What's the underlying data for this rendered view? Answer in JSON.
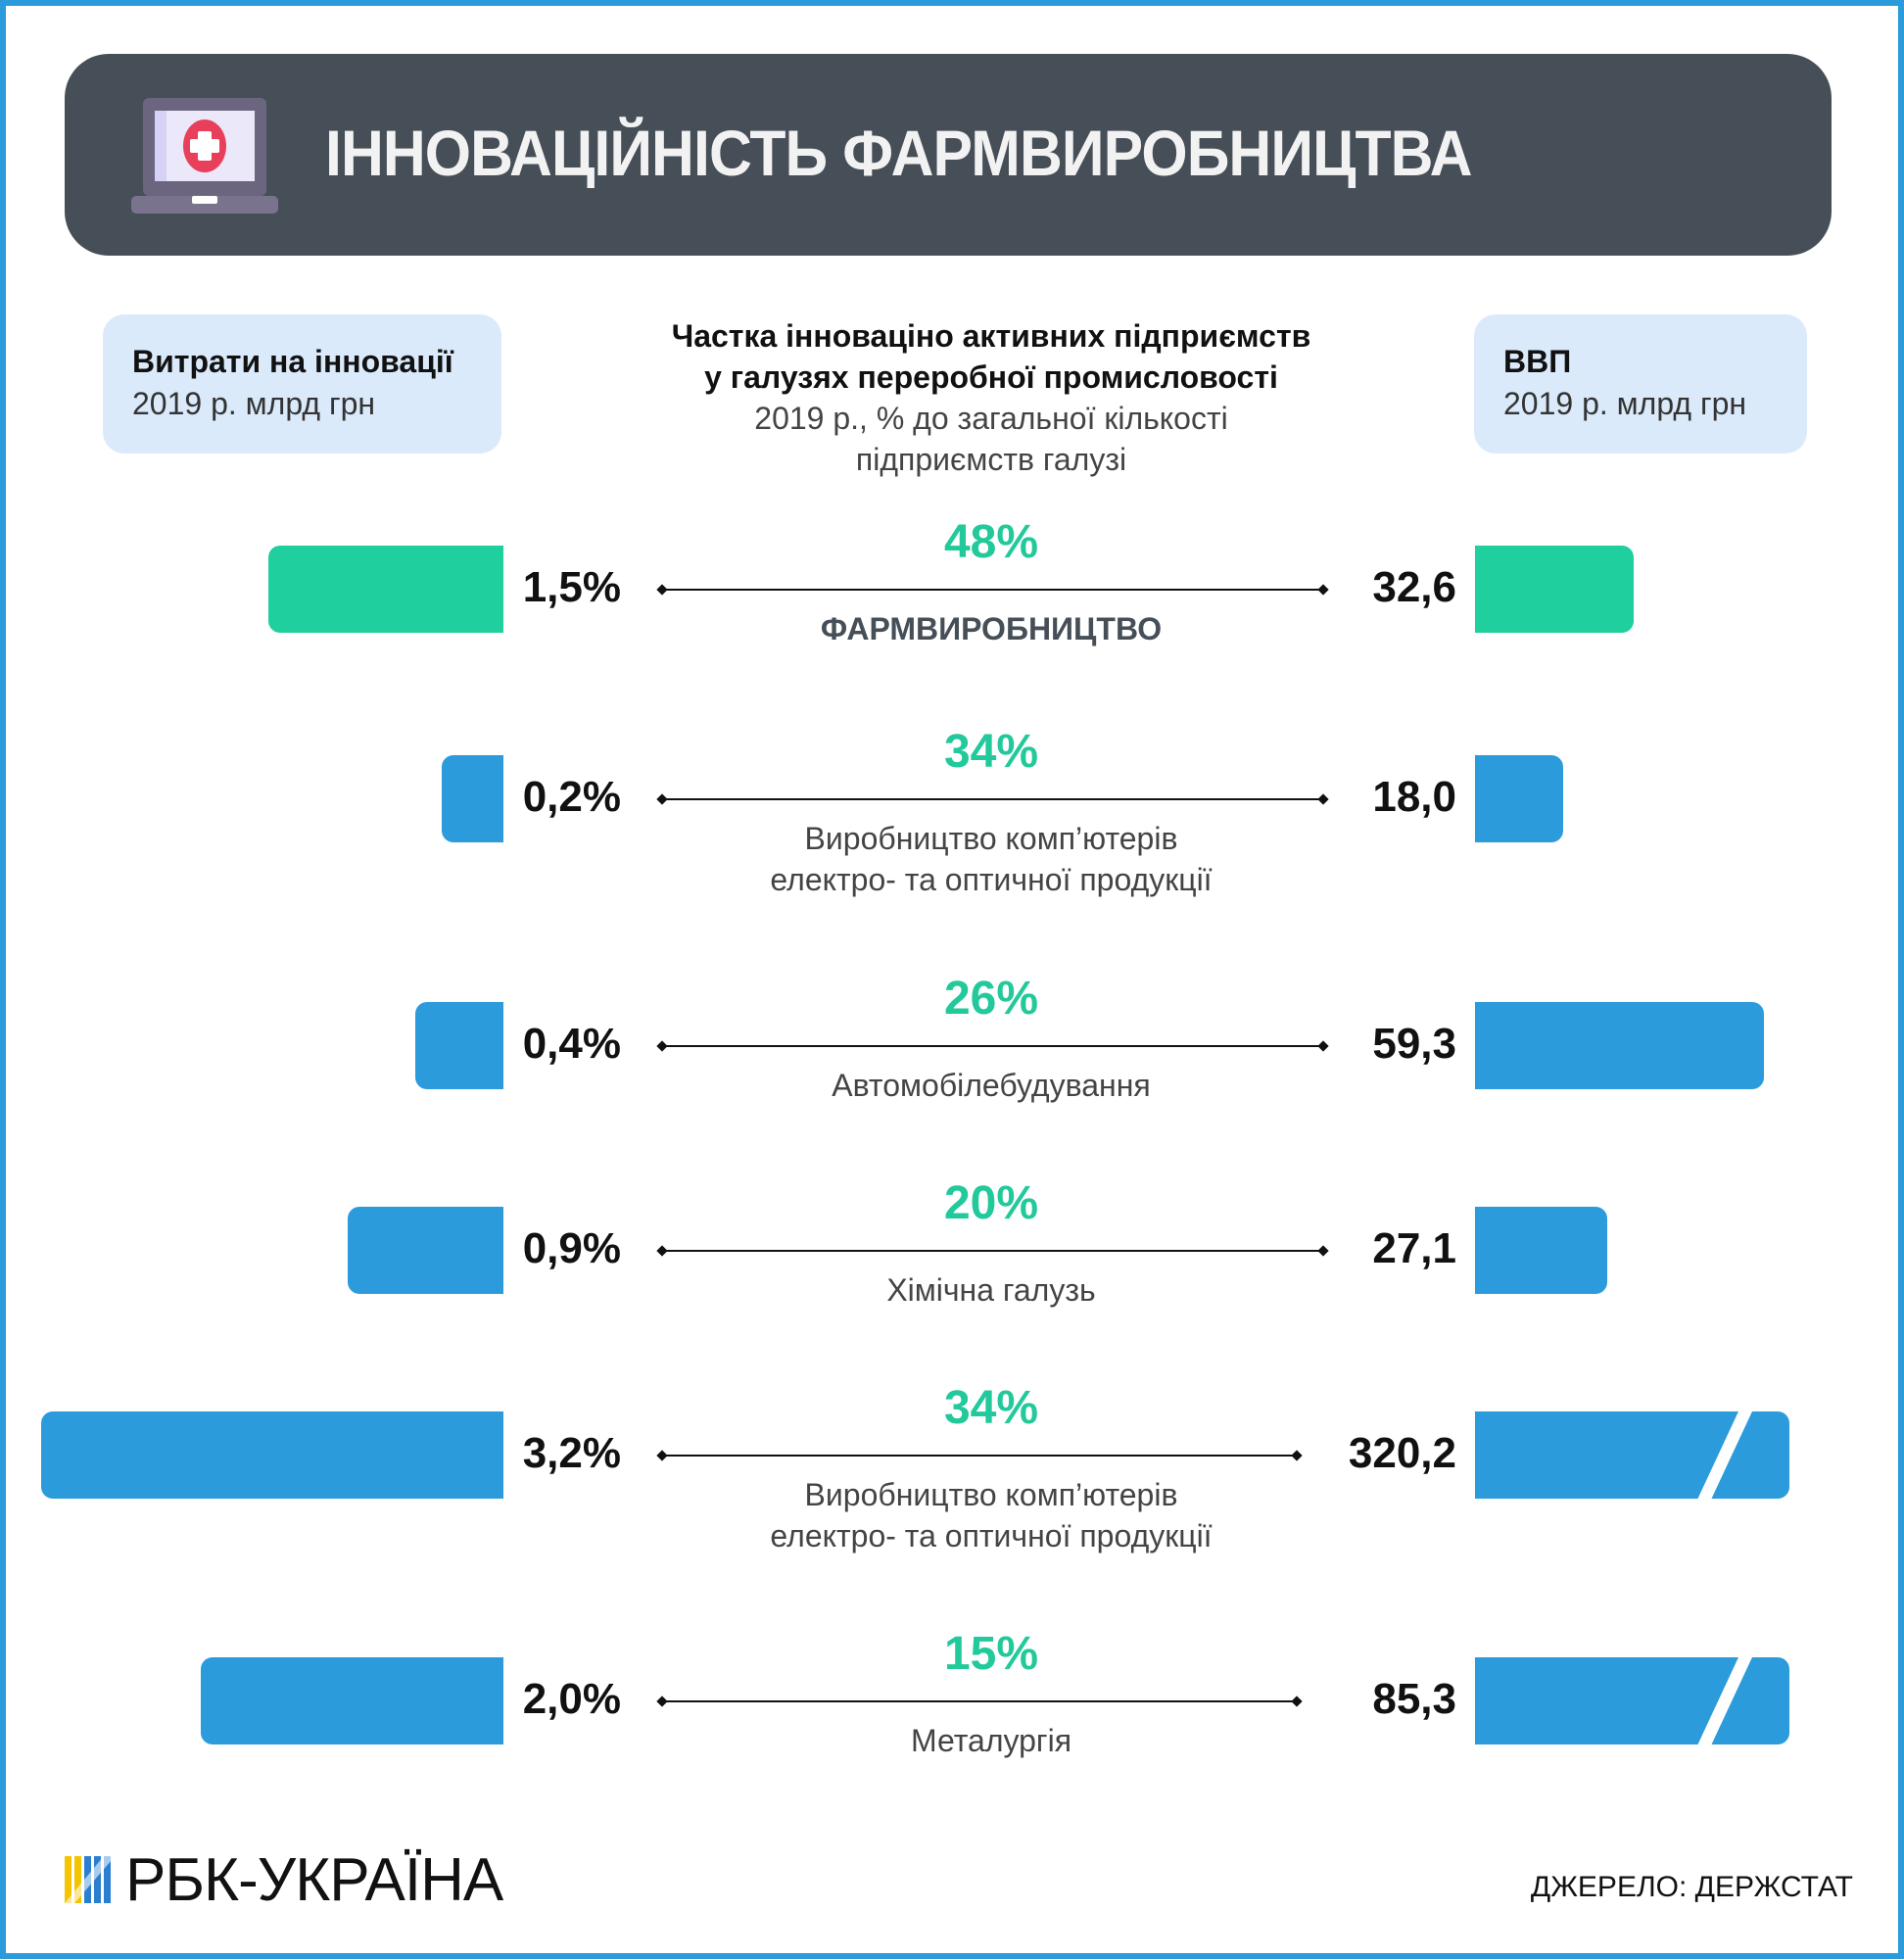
{
  "header": {
    "title": "ІННОВАЦІЙНІСТЬ ФАРМВИРОБНИЦТВА",
    "icon": "laptop-medical-cross-icon"
  },
  "left_box": {
    "title": "Витрати на інновації",
    "subtitle": "2019 р. млрд грн"
  },
  "right_box": {
    "title": "ВВП",
    "subtitle": "2019 р. млрд грн"
  },
  "center_head": {
    "line1": "Частка інноваціно активних підприємств",
    "line2": "у галузях переробної промисловості",
    "line3": "2019 р., % до загальної кількості",
    "line4": "підприємств галузі"
  },
  "colors": {
    "highlight": "#20cf9e",
    "bar": "#2b9bdb",
    "percent": "#22c99b",
    "header_bg": "#464f58"
  },
  "chart_data": {
    "type": "bar",
    "orientation": "horizontal-diverging",
    "rows": [
      {
        "share": "48%",
        "category": "ФАРМВИРОБНИЦТВО",
        "category2": "",
        "innovation_label": "1,5%",
        "innovation": 1.5,
        "gdp_label": "32,6",
        "gdp": 32.6,
        "highlight": true,
        "broken": false
      },
      {
        "share": "34%",
        "category": "Виробництво комп’ютерів",
        "category2": "електро- та оптичної продукції",
        "innovation_label": "0,2%",
        "innovation": 0.2,
        "gdp_label": "18,0",
        "gdp": 18.0,
        "highlight": false,
        "broken": false
      },
      {
        "share": "26%",
        "category": "Автомобілебудування",
        "category2": "",
        "innovation_label": "0,4%",
        "innovation": 0.4,
        "gdp_label": "59,3",
        "gdp": 59.3,
        "highlight": false,
        "broken": false
      },
      {
        "share": "20%",
        "category": "Хімічна галузь",
        "category2": "",
        "innovation_label": "0,9%",
        "innovation": 0.9,
        "gdp_label": "27,1",
        "gdp": 27.1,
        "highlight": false,
        "broken": false
      },
      {
        "share": "34%",
        "category": "Виробництво комп’ютерів",
        "category2": "електро- та оптичної продукції",
        "innovation_label": "3,2%",
        "innovation": 3.2,
        "gdp_label": "320,2",
        "gdp": 320.2,
        "highlight": false,
        "broken": true
      },
      {
        "share": "15%",
        "category": "Металургія",
        "category2": "",
        "innovation_label": "2,0%",
        "innovation": 2.0,
        "gdp_label": "85,3",
        "gdp": 85.3,
        "highlight": false,
        "broken": true
      }
    ]
  },
  "footer": {
    "logo": "РБК-УКРАЇНА",
    "source": "ДЖЕРЕЛО: ДЕРЖСТАТ"
  }
}
